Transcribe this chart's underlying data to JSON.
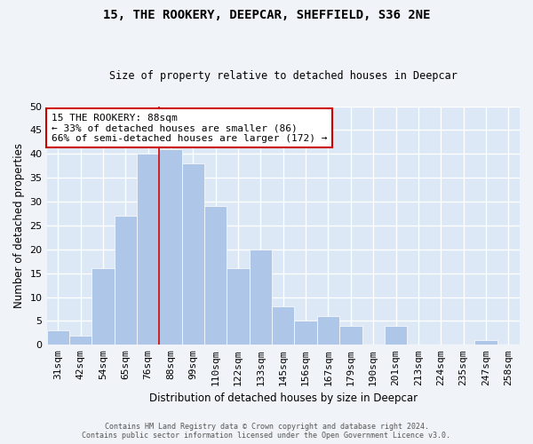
{
  "title1": "15, THE ROOKERY, DEEPCAR, SHEFFIELD, S36 2NE",
  "title2": "Size of property relative to detached houses in Deepcar",
  "xlabel": "Distribution of detached houses by size in Deepcar",
  "ylabel": "Number of detached properties",
  "categories": [
    "31sqm",
    "42sqm",
    "54sqm",
    "65sqm",
    "76sqm",
    "88sqm",
    "99sqm",
    "110sqm",
    "122sqm",
    "133sqm",
    "145sqm",
    "156sqm",
    "167sqm",
    "179sqm",
    "190sqm",
    "201sqm",
    "213sqm",
    "224sqm",
    "235sqm",
    "247sqm",
    "258sqm"
  ],
  "values": [
    3,
    2,
    16,
    27,
    40,
    41,
    38,
    29,
    16,
    20,
    8,
    5,
    6,
    4,
    0,
    4,
    0,
    0,
    0,
    1,
    0
  ],
  "bar_color": "#aec6e8",
  "bar_edge_color": "#ffffff",
  "property_label": "88sqm",
  "property_idx": 5,
  "annotation_text": "15 THE ROOKERY: 88sqm\n← 33% of detached houses are smaller (86)\n66% of semi-detached houses are larger (172) →",
  "annotation_box_color": "#ffffff",
  "annotation_box_edge": "#cc0000",
  "line_color": "#cc0000",
  "background_color": "#dce8f5",
  "grid_color": "#ffffff",
  "fig_bg_color": "#f0f4f8",
  "ylim": [
    0,
    50
  ],
  "yticks": [
    0,
    5,
    10,
    15,
    20,
    25,
    30,
    35,
    40,
    45,
    50
  ],
  "footer1": "Contains HM Land Registry data © Crown copyright and database right 2024.",
  "footer2": "Contains public sector information licensed under the Open Government Licence v3.0."
}
